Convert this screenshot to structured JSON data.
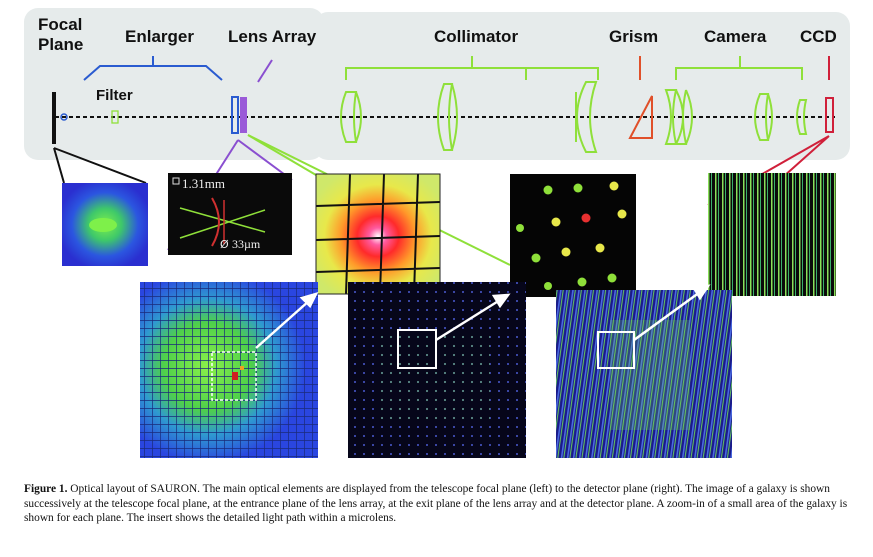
{
  "labels": {
    "focal_plane_1": "Focal",
    "focal_plane_2": "Plane",
    "enlarger": "Enlarger",
    "lens_array": "Lens Array",
    "collimator": "Collimator",
    "grism": "Grism",
    "camera": "Camera",
    "ccd": "CCD",
    "filter": "Filter"
  },
  "inset": {
    "size_label": "1.31mm",
    "diameter_label": "33µm"
  },
  "caption": {
    "lead": "Figure 1.",
    "text": " Optical layout of SAURON. The main optical elements are displayed from the telescope focal plane (left) to the detector plane (right). The image of a galaxy is shown successively at the telescope focal plane, at the entrance plane of the lens array, at the exit plane of the lens array and at the detector plane. A zoom-in of a small area of the galaxy is shown for each plane. The insert shows the detailed light path within a microlens."
  },
  "colors": {
    "enlarger_bracket": "#2a5bd0",
    "lens_array_bracket": "#8a4fd0",
    "collimator_bracket": "#8fe03a",
    "grism_bracket": "#e0502a",
    "ccd_bracket": "#d0203a",
    "panel_bg": "#e8ecec"
  }
}
